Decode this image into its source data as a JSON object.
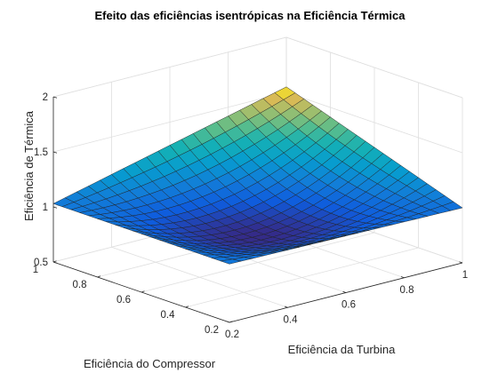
{
  "chart_data": {
    "type": "surface",
    "title": "Efeito das eficiências isentrópicas na Eficiência Térmica",
    "xlabel": "Eficiência da Turbina",
    "ylabel": "Eficiência do Compressor",
    "zlabel": "Eficiência de Térmica",
    "xlim": [
      0.2,
      1
    ],
    "ylim": [
      0.2,
      1
    ],
    "zlim": [
      0.5,
      2
    ],
    "x_ticks": [
      0.2,
      0.4,
      0.6,
      0.8,
      1
    ],
    "y_ticks": [
      0.2,
      0.4,
      0.6,
      0.8,
      1
    ],
    "z_ticks": [
      0.5,
      1,
      1.5,
      2
    ],
    "x_tick_labels": [
      "0.2",
      "0.4",
      "0.6",
      "0.8",
      "1"
    ],
    "y_tick_labels": [
      "0.2",
      "0.4",
      "0.6",
      "0.8",
      "1"
    ],
    "z_tick_labels": [
      "0.5",
      "1",
      "1.5",
      "2"
    ],
    "grid": true,
    "colormap": "parula",
    "mesh": {
      "x_range": [
        0.2,
        1
      ],
      "y_range": [
        0.2,
        1
      ],
      "steps": 20,
      "corner_values": {
        "x0.2_y0.2": 1.03,
        "x1_y0.2": 1.0,
        "x0.2_y1": 1.03,
        "x1_y1": 1.55
      },
      "minimum_value": 0.86
    }
  }
}
